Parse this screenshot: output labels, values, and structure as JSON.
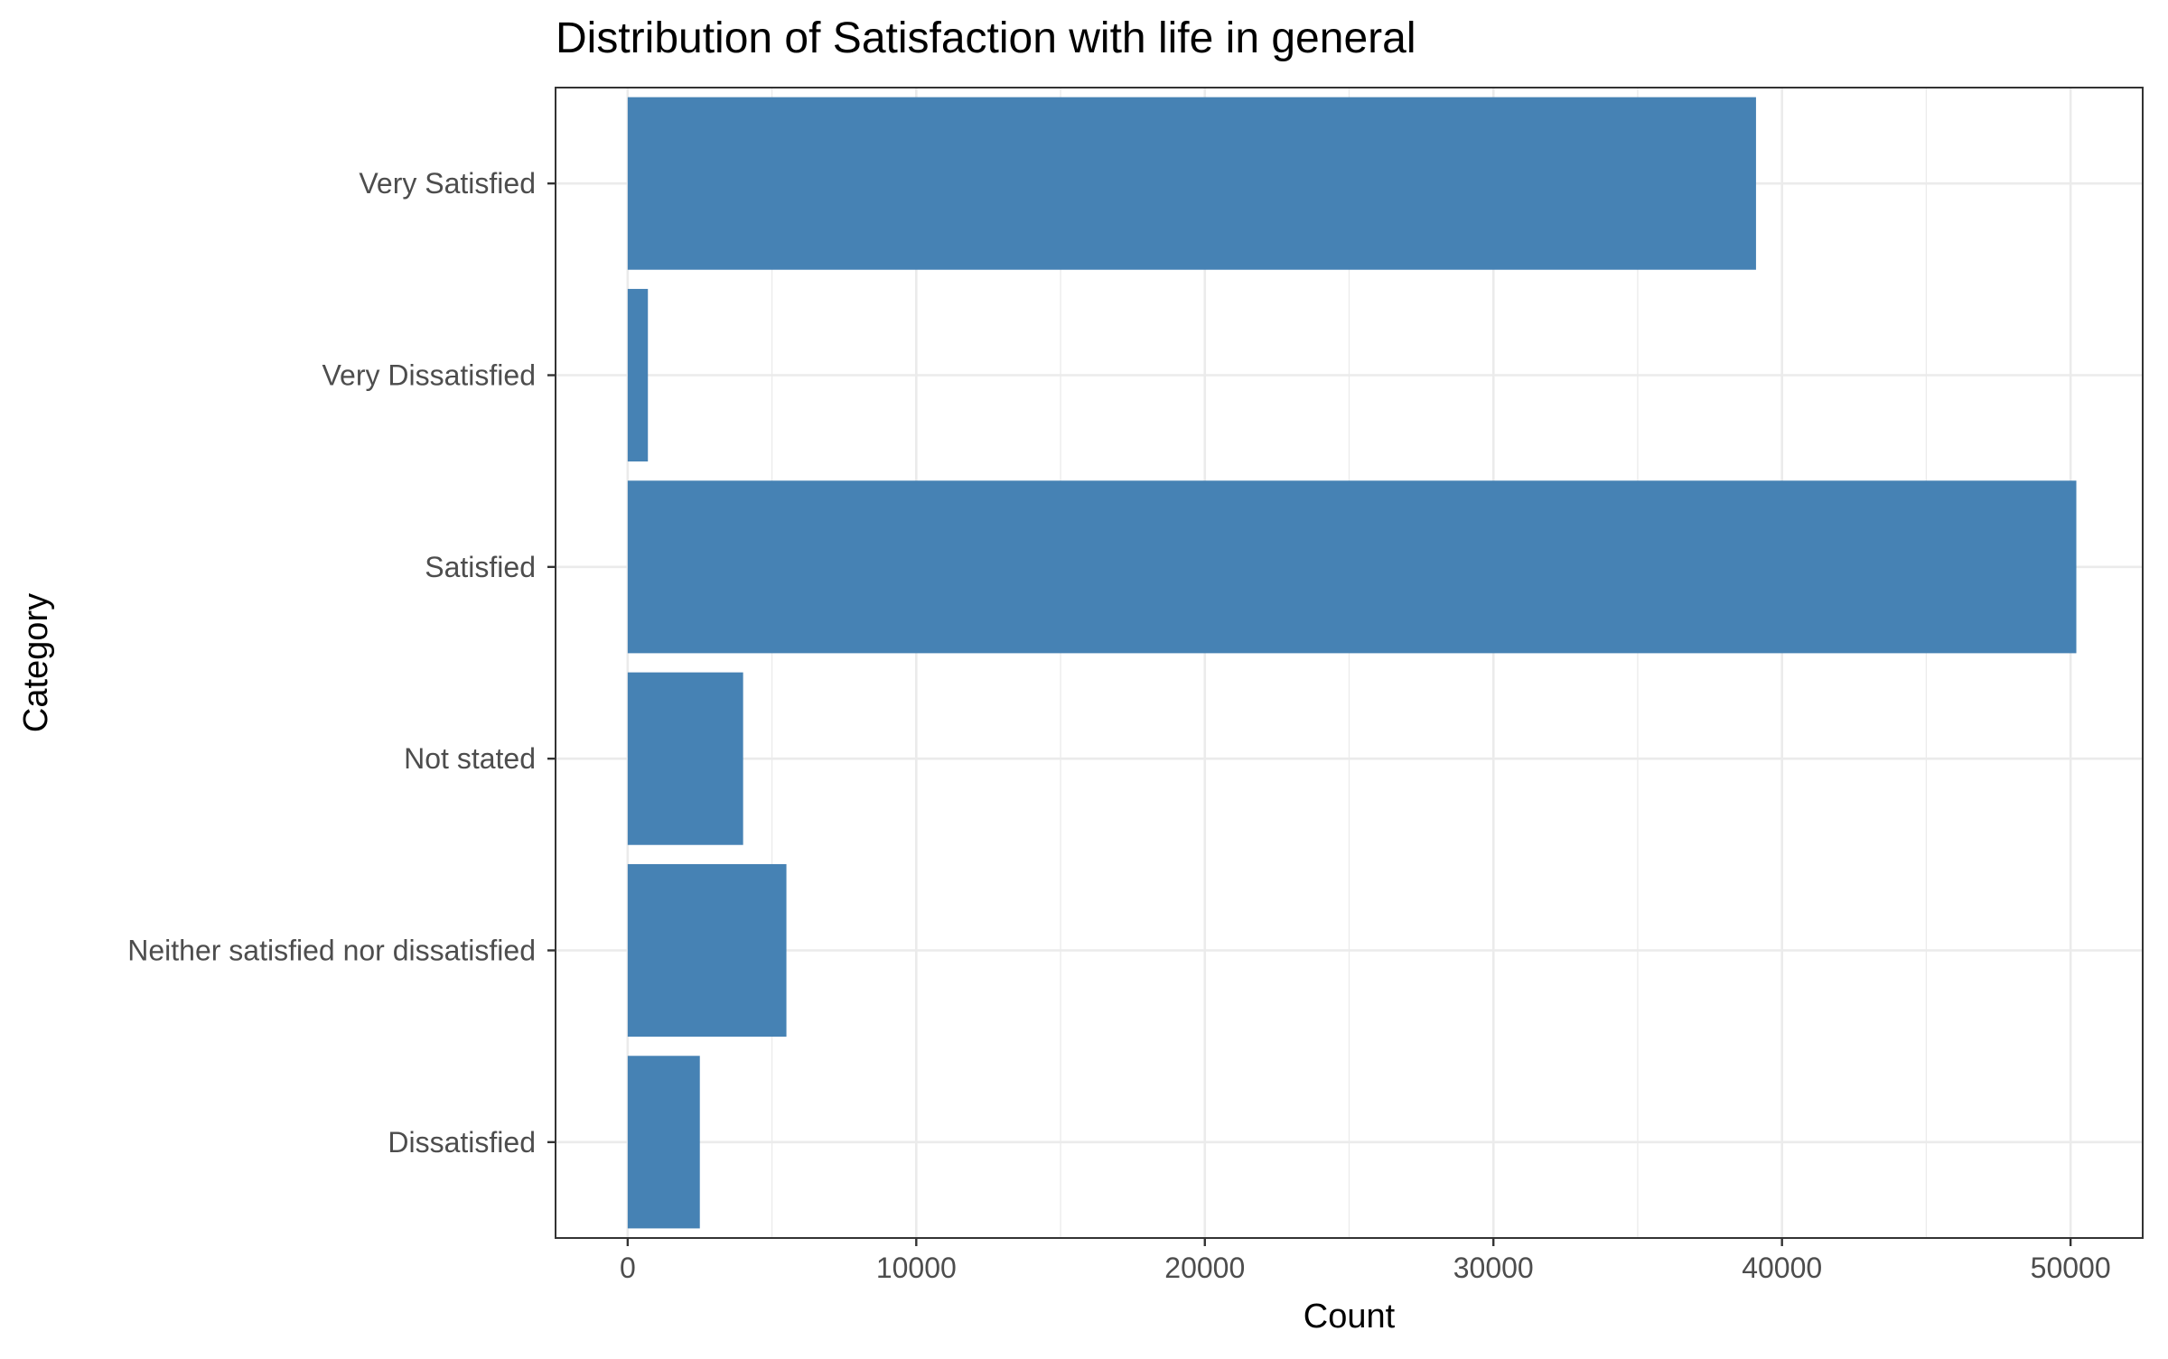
{
  "chart_data": {
    "type": "bar",
    "orientation": "horizontal",
    "title": "Distribution of Satisfaction with life in general",
    "xlabel": "Count",
    "ylabel": "Category",
    "categories": [
      "Dissatisfied",
      "Neither satisfied nor dissatisfied",
      "Not stated",
      "Satisfied",
      "Very Dissatisfied",
      "Very Satisfied"
    ],
    "values": [
      2500,
      5500,
      4000,
      50200,
      700,
      39100
    ],
    "xlim": [
      -2500,
      52500
    ],
    "xticks": [
      0,
      10000,
      20000,
      30000,
      40000,
      50000
    ],
    "xtick_labels": [
      "0",
      "10000",
      "20000",
      "30000",
      "40000",
      "50000"
    ],
    "grid": true,
    "bar_color": "#4682b4"
  }
}
